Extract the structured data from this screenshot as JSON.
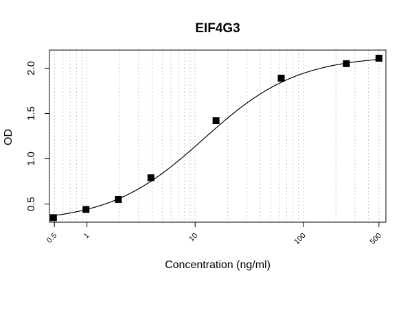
{
  "chart_data": {
    "type": "scatter",
    "title": "EIF4G3",
    "xlabel": "Concentration (ng/ml)",
    "ylabel": "OD",
    "x_scale": "log",
    "xlim": [
      0.45,
      580
    ],
    "ylim": [
      0.3,
      2.2
    ],
    "x_ticks": [
      {
        "value": 0.5,
        "label": "0.5"
      },
      {
        "value": 1,
        "label": "1"
      },
      {
        "value": 10,
        "label": "10"
      },
      {
        "value": 100,
        "label": "100"
      },
      {
        "value": 500,
        "label": "500"
      }
    ],
    "y_ticks": [
      {
        "value": 0.5,
        "label": "0.5"
      },
      {
        "value": 1.0,
        "label": "1.0"
      },
      {
        "value": 1.5,
        "label": "1.5"
      },
      {
        "value": 2.0,
        "label": "2.0"
      }
    ],
    "grid": "vertical dotted at log minor ticks",
    "points": [
      {
        "x": 0.49,
        "y": 0.35
      },
      {
        "x": 0.98,
        "y": 0.44
      },
      {
        "x": 1.95,
        "y": 0.55
      },
      {
        "x": 3.9,
        "y": 0.79
      },
      {
        "x": 15.6,
        "y": 1.42
      },
      {
        "x": 62.5,
        "y": 1.89
      },
      {
        "x": 250,
        "y": 2.05
      },
      {
        "x": 500,
        "y": 2.11
      }
    ],
    "fit_curve": {
      "type": "4PL",
      "bottom": 0.3,
      "top": 2.14,
      "ec50": 12,
      "hill": 1.0
    }
  }
}
